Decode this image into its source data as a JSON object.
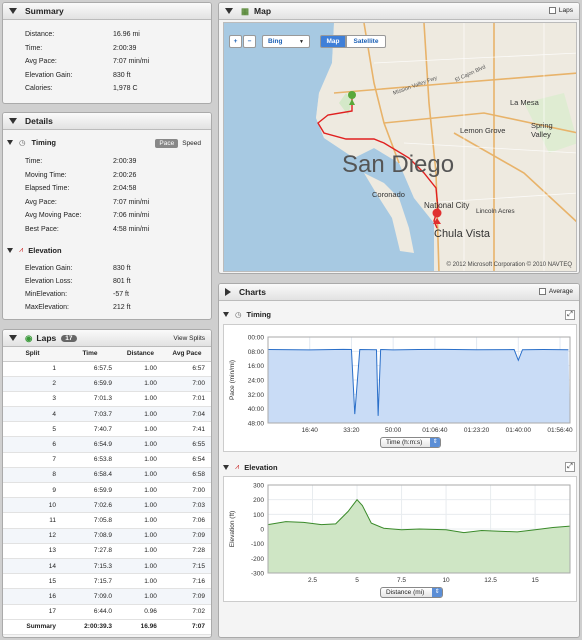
{
  "summary": {
    "title": "Summary",
    "rows": [
      {
        "k": "Distance:",
        "v": "16.96 mi"
      },
      {
        "k": "Time:",
        "v": "2:00:39"
      },
      {
        "k": "Avg Pace:",
        "v": "7:07 min/mi"
      },
      {
        "k": "Elevation Gain:",
        "v": "830 ft"
      },
      {
        "k": "Calories:",
        "v": "1,978 C"
      }
    ]
  },
  "details": {
    "title": "Details",
    "timing": {
      "title": "Timing",
      "pace": "Pace",
      "speed": "Speed",
      "rows": [
        {
          "k": "Time:",
          "v": "2:00:39"
        },
        {
          "k": "Moving Time:",
          "v": "2:00:26"
        },
        {
          "k": "Elapsed Time:",
          "v": "2:04:58"
        },
        {
          "k": "Avg Pace:",
          "v": "7:07 min/mi"
        },
        {
          "k": "Avg Moving Pace:",
          "v": "7:06 min/mi"
        },
        {
          "k": "Best Pace:",
          "v": "4:58 min/mi"
        }
      ]
    },
    "elevation": {
      "title": "Elevation",
      "rows": [
        {
          "k": "Elevation Gain:",
          "v": "830 ft"
        },
        {
          "k": "Elevation Loss:",
          "v": "801 ft"
        },
        {
          "k": "MinElevation:",
          "v": "-57 ft"
        },
        {
          "k": "MaxElevation:",
          "v": "212 ft"
        }
      ]
    }
  },
  "laps": {
    "title": "Laps",
    "count": "17",
    "view": "View Splits",
    "headers": [
      "Split",
      "Time",
      "Distance",
      "Avg Pace"
    ],
    "rows": [
      [
        "1",
        "6:57.5",
        "1.00",
        "6:57"
      ],
      [
        "2",
        "6:59.9",
        "1.00",
        "7:00"
      ],
      [
        "3",
        "7:01.3",
        "1.00",
        "7:01"
      ],
      [
        "4",
        "7:03.7",
        "1.00",
        "7:04"
      ],
      [
        "5",
        "7:40.7",
        "1.00",
        "7:41"
      ],
      [
        "6",
        "6:54.9",
        "1.00",
        "6:55"
      ],
      [
        "7",
        "6:53.8",
        "1.00",
        "6:54"
      ],
      [
        "8",
        "6:58.4",
        "1.00",
        "6:58"
      ],
      [
        "9",
        "6:59.9",
        "1.00",
        "7:00"
      ],
      [
        "10",
        "7:02.6",
        "1.00",
        "7:03"
      ],
      [
        "11",
        "7:05.8",
        "1.00",
        "7:06"
      ],
      [
        "12",
        "7:08.9",
        "1.00",
        "7:09"
      ],
      [
        "13",
        "7:27.8",
        "1.00",
        "7:28"
      ],
      [
        "14",
        "7:15.3",
        "1.00",
        "7:15"
      ],
      [
        "15",
        "7:15.7",
        "1.00",
        "7:16"
      ],
      [
        "16",
        "7:09.0",
        "1.00",
        "7:09"
      ],
      [
        "17",
        "6:44.0",
        "0.96",
        "7:02"
      ]
    ],
    "summary": [
      "Summary",
      "2:00:39.3",
      "16.96",
      "7:07"
    ]
  },
  "map": {
    "title": "Map",
    "laps": "Laps",
    "provider": "Bing",
    "map_btn": "Map",
    "sat_btn": "Satellite",
    "copyright": "© 2012 Microsoft Corporation  © 2010 NAVTEQ",
    "labels": {
      "sd": "San Diego",
      "cv": "Chula Vista",
      "nc": "National City",
      "cor": "Coronado",
      "lm": "La Mesa",
      "lg": "Lemon Grove",
      "sv": "Spring Valley",
      "lgr": "Lincoln Acres",
      "ed": "El Cajon Blvd",
      "mv": "Mission Valley Fwy"
    }
  },
  "charts": {
    "title": "Charts",
    "average": "Average"
  },
  "timing_chart": {
    "title": "Timing",
    "xsel": "Time (h:m:s)",
    "ylabel": "Pace (min/mi)"
  },
  "elev_chart": {
    "title": "Elevation",
    "xsel": "Distance (mi)",
    "ylabel": "Elevation (ft)"
  },
  "chart_data": [
    {
      "type": "line",
      "title": "Timing",
      "ylabel": "Pace (min/mi)",
      "xlabel": "Time (h:m:s)",
      "yticks": [
        "00:00",
        "08:00",
        "16:00",
        "24:00",
        "32:00",
        "40:00",
        "48:00"
      ],
      "xticks": [
        "16:40",
        "33:20",
        "50:00",
        "01:06:40",
        "01:23:20",
        "01:40:00",
        "01:56:40"
      ],
      "x_seconds": [
        0,
        1000,
        1800,
        2000,
        2080,
        2200,
        2600,
        2640,
        2700,
        3000,
        3600,
        4200,
        5000,
        5900,
        6000,
        6100,
        6600,
        7200
      ],
      "y_pace_minutes": [
        7.0,
        7.2,
        6.9,
        7.0,
        43.0,
        7.0,
        7.1,
        44.0,
        7.0,
        7.2,
        7.0,
        6.9,
        7.1,
        7.0,
        13.0,
        7.1,
        7.0,
        7.1
      ]
    },
    {
      "type": "area",
      "title": "Elevation",
      "ylabel": "Elevation (ft)",
      "xlabel": "Distance (mi)",
      "yticks": [
        "300",
        "200",
        "100",
        "0",
        "-100",
        "-200",
        "-300"
      ],
      "xticks": [
        "2.5",
        "5",
        "7.5",
        "10",
        "12.5",
        "15"
      ],
      "x": [
        0,
        1,
        2,
        3,
        3.8,
        4.5,
        5,
        5.3,
        5.8,
        6.5,
        7.5,
        8.5,
        10,
        11,
        12,
        13,
        14,
        15,
        16,
        16.96
      ],
      "y": [
        30,
        50,
        45,
        30,
        35,
        120,
        200,
        160,
        40,
        5,
        -5,
        0,
        -5,
        -25,
        -10,
        -15,
        -20,
        -5,
        10,
        20
      ]
    }
  ],
  "colors": {
    "route": "#e02020",
    "pace_fill": "#c9dcf6",
    "pace_line": "#2a6fc9",
    "elev_fill": "#cfe6c5",
    "elev_line": "#3a8a2a"
  }
}
